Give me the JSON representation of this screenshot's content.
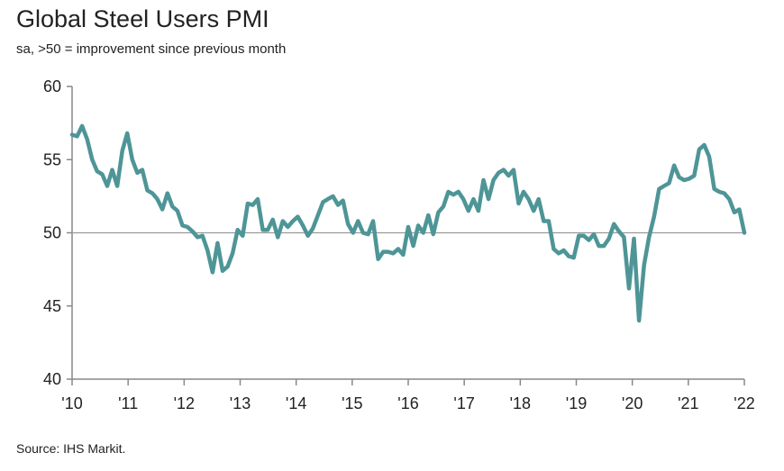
{
  "header": {
    "title": "Global Steel Users PMI",
    "subtitle": "sa, >50 = improvement since previous month"
  },
  "footer": {
    "source": "Source: IHS Markit."
  },
  "colors": {
    "line": "#4e9597",
    "axis": "#888888",
    "reference": "#999999"
  },
  "chart_data": {
    "type": "line",
    "ylim": [
      40,
      60
    ],
    "yticks": [
      40,
      45,
      50,
      55,
      60
    ],
    "xlim": [
      2010.0,
      2022.0
    ],
    "xticks": [
      {
        "value": 2010,
        "label": "'10"
      },
      {
        "value": 2011,
        "label": "'11"
      },
      {
        "value": 2012,
        "label": "'12"
      },
      {
        "value": 2013,
        "label": "'13"
      },
      {
        "value": 2014,
        "label": "'14"
      },
      {
        "value": 2015,
        "label": "'15"
      },
      {
        "value": 2016,
        "label": "'16"
      },
      {
        "value": 2017,
        "label": "'17"
      },
      {
        "value": 2018,
        "label": "'18"
      },
      {
        "value": 2019,
        "label": "'19"
      },
      {
        "value": 2020,
        "label": "'20"
      },
      {
        "value": 2021,
        "label": "'21"
      },
      {
        "value": 2022,
        "label": "'22"
      }
    ],
    "reference_line": 50,
    "series": [
      {
        "values": [
          56.7,
          56.6,
          57.3,
          56.4,
          55.0,
          54.2,
          54.0,
          53.2,
          54.3,
          53.2,
          55.6,
          56.8,
          55.0,
          54.1,
          54.3,
          52.9,
          52.7,
          52.3,
          51.6,
          52.7,
          51.8,
          51.5,
          50.5,
          50.4,
          50.1,
          49.7,
          49.8,
          48.8,
          47.3,
          49.3,
          47.4,
          47.7,
          48.6,
          50.2,
          49.8,
          52.0,
          51.9,
          52.3,
          50.2,
          50.2,
          50.9,
          49.7,
          50.8,
          50.4,
          50.8,
          51.1,
          50.5,
          49.8,
          50.3,
          51.2,
          52.1,
          52.3,
          52.5,
          51.9,
          52.2,
          50.6,
          50.0,
          50.8,
          50.0,
          49.9,
          50.8,
          48.2,
          48.7,
          48.7,
          48.6,
          48.9,
          48.5,
          50.4,
          49.1,
          50.5,
          50.0,
          51.2,
          49.9,
          51.4,
          51.8,
          52.8,
          52.6,
          52.8,
          52.3,
          51.5,
          52.3,
          51.5,
          53.6,
          52.3,
          53.6,
          54.1,
          54.3,
          53.9,
          54.3,
          52.0,
          52.8,
          52.3,
          51.5,
          52.3,
          50.8,
          50.8,
          48.9,
          48.6,
          48.8,
          48.4,
          48.3,
          49.8,
          49.8,
          49.5,
          49.9,
          49.1,
          49.1,
          49.6,
          50.6,
          50.1,
          49.7,
          46.2,
          49.6,
          44.0,
          47.8,
          49.7,
          51.1,
          53.0,
          53.2,
          53.4,
          54.6,
          53.8,
          53.6,
          53.7,
          53.9,
          55.7,
          56.0,
          55.2,
          53.0,
          52.8,
          52.7,
          52.3,
          51.4,
          51.6,
          50.0
        ]
      }
    ]
  }
}
